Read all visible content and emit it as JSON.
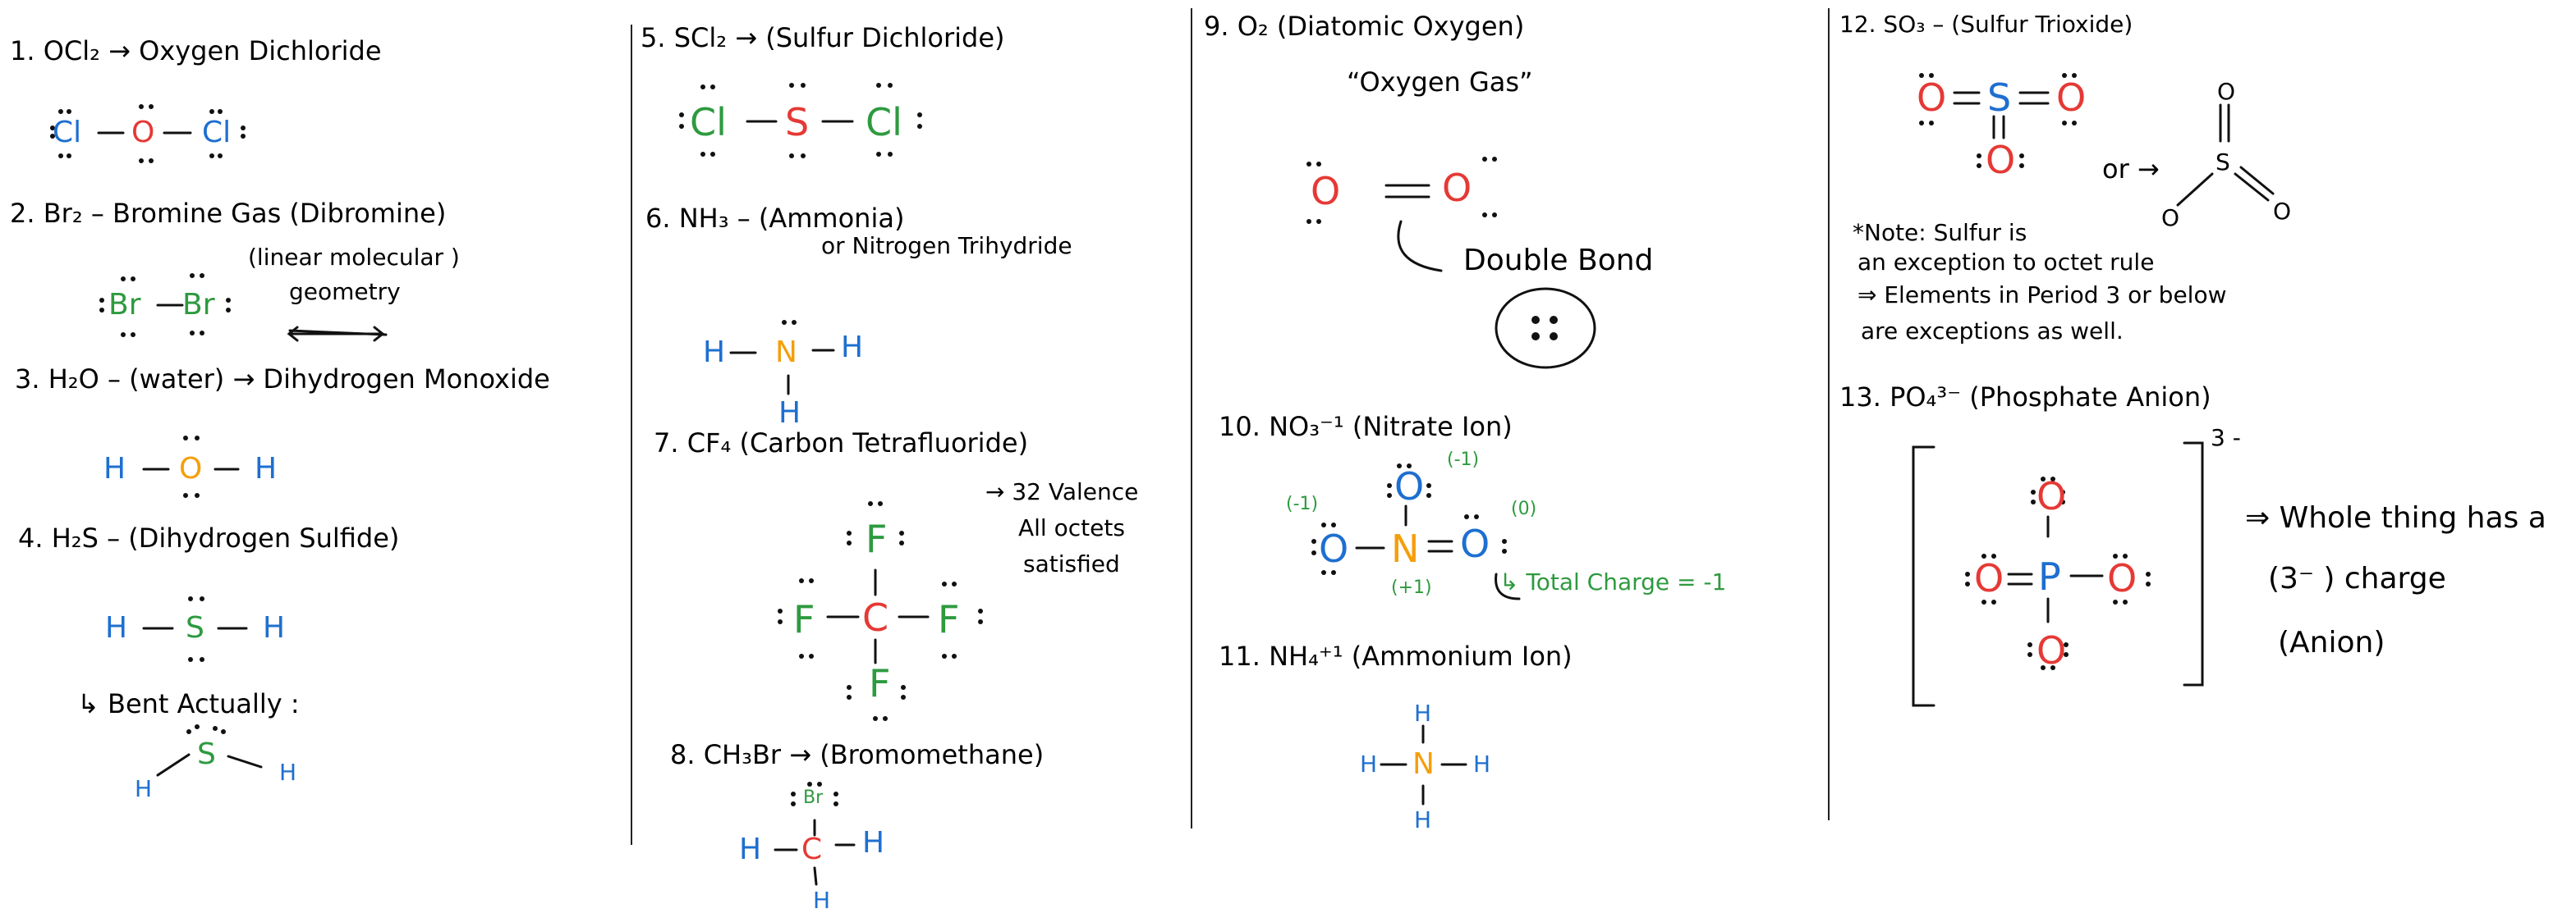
{
  "colors": {
    "ink": "#111111",
    "oxygen": "#e53935",
    "nitrogen": "#f59e0b",
    "blue": "#1e6fd0",
    "green": "#2e9a3f"
  },
  "col1": {
    "oc_title": "1. OCl₂ → Oxygen Dichloride",
    "oc_atoms": {
      "cl1": "Cl",
      "o": "O",
      "cl2": "Cl"
    },
    "br_title": "2. Br₂ – Bromine Gas (Dibromine)",
    "br_atoms": {
      "br1": "Br",
      "br2": "Br"
    },
    "br_note1": "(linear molecular )",
    "br_note2": "geometry",
    "h2o_title": "3. H₂O – (water) → Dihydrogen Monoxide",
    "h2o_atoms": {
      "h1": "H",
      "o": "O",
      "h2": "H"
    },
    "h2s_title": "4. H₂S – (Dihydrogen Sulfide)",
    "h2s_atoms": {
      "h1": "H",
      "s": "S",
      "h2": "H"
    },
    "bent_note": "↳ Bent Actually :",
    "bent_atoms": {
      "h1": "H",
      "s": "S",
      "h2": "H"
    }
  },
  "col2": {
    "scl_title": "5. SCl₂ → (Sulfur Dichloride)",
    "scl_atoms": {
      "cl1": "Cl",
      "s": "S",
      "cl2": "Cl"
    },
    "nh3_title": "6. NH₃ – (Ammonia)",
    "nh3_sub": "or Nitrogen Trihydride",
    "nh3_atoms": {
      "h1": "H",
      "n": "N",
      "h2": "H",
      "h3": "H"
    },
    "cf4_title": "7. CF₄ (Carbon Tetrafluoride)",
    "cf4_note1": "→ 32 Valence",
    "cf4_note2": "All octets",
    "cf4_note3": "satisfied",
    "cf4_atoms": {
      "f_top": "F",
      "f_left": "F",
      "c": "C",
      "f_right": "F",
      "f_bottom": "F"
    },
    "ch3br_title": "8. CH₃Br → (Bromomethane)",
    "ch3br_atoms": {
      "br": "Br",
      "h_left": "H",
      "c": "C",
      "h_right": "H",
      "h_bottom": "H"
    }
  },
  "col3": {
    "o2_title": "9. O₂ (Diatomic Oxygen)",
    "o2_sub": "“Oxygen Gas”",
    "o2_atoms": {
      "o1": "O",
      "o2": "O"
    },
    "double_bond": "Double Bond",
    "no3_title": "10. NO₃⁻¹ (Nitrate Ion)",
    "no3_atoms": {
      "o_top": "O",
      "o_left": "O",
      "n": "N",
      "o_right": "O"
    },
    "no3_charges": {
      "top": "(-1)",
      "left": "(-1)",
      "right": "(0)",
      "n": "(+1)"
    },
    "total_charge": "↳ Total Charge = -1",
    "nh4_title": "11. NH₄⁺¹ (Ammonium Ion)",
    "nh4_atoms": {
      "h_top": "H",
      "h_left": "H",
      "n": "N",
      "h_right": "H",
      "h_bottom": "H"
    }
  },
  "col4": {
    "so3_title": "12. SO₃ – (Sulfur Trioxide)",
    "so3_atoms": {
      "o_left": "O",
      "s": "S",
      "o_right": "O",
      "o_bottom": "O"
    },
    "so3_or": "or →",
    "so3_alt": {
      "o_top": "O",
      "s": "S",
      "o_left": "O",
      "o_right": "O"
    },
    "note1": "*Note: Sulfur is",
    "note2": "an exception to octet rule",
    "note3": "⇒ Elements in Period 3 or below",
    "note4": "are exceptions as well.",
    "po4_title": "13. PO₄³⁻ (Phosphate Anion)",
    "po4_atoms": {
      "o_top": "O",
      "o_left": "O",
      "p": "P",
      "o_right": "O",
      "o_bottom": "O"
    },
    "po4_charge": "3 -",
    "whole1": "⇒ Whole thing has a",
    "whole2": "(3⁻ ) charge",
    "whole3": "(Anion)"
  }
}
